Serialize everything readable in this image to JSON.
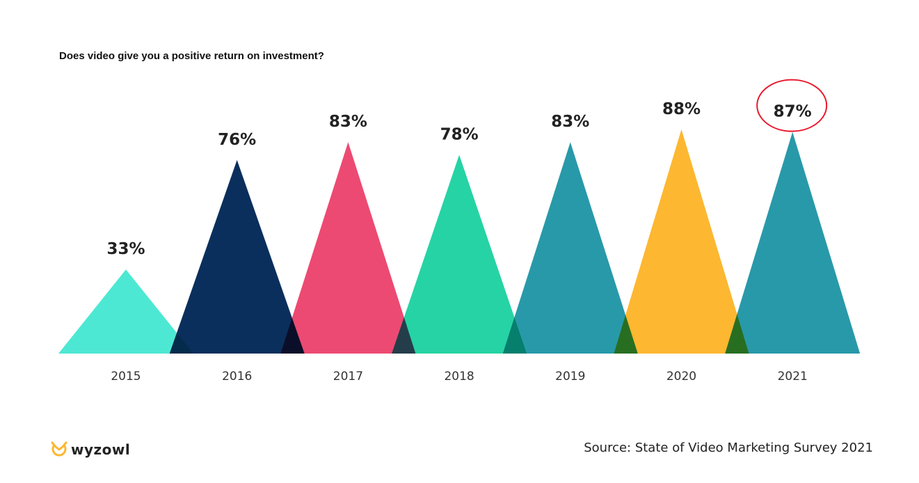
{
  "chart_data": {
    "type": "bar",
    "mark": "triangle",
    "title": "Does video give you a positive return on investment?",
    "categories": [
      "2015",
      "2016",
      "2017",
      "2018",
      "2019",
      "2020",
      "2021"
    ],
    "values": [
      33,
      76,
      83,
      78,
      83,
      88,
      87
    ],
    "value_labels": [
      "33%",
      "76%",
      "83%",
      "78%",
      "83%",
      "88%",
      "87%"
    ],
    "colors": [
      "#4DE8D3",
      "#0A2F5C",
      "#EC4A72",
      "#26D3A4",
      "#2899A9",
      "#FDB731",
      "#2899A9"
    ],
    "highlighted": "2021",
    "highlight_color": "#E8192C",
    "ylim": [
      0,
      100
    ],
    "grid": false,
    "xlabel": "",
    "ylabel": ""
  },
  "footer": {
    "source": "Source: State of Video Marketing Survey 2021",
    "logo": "wyzowl",
    "logo_color": "#FDB731"
  }
}
